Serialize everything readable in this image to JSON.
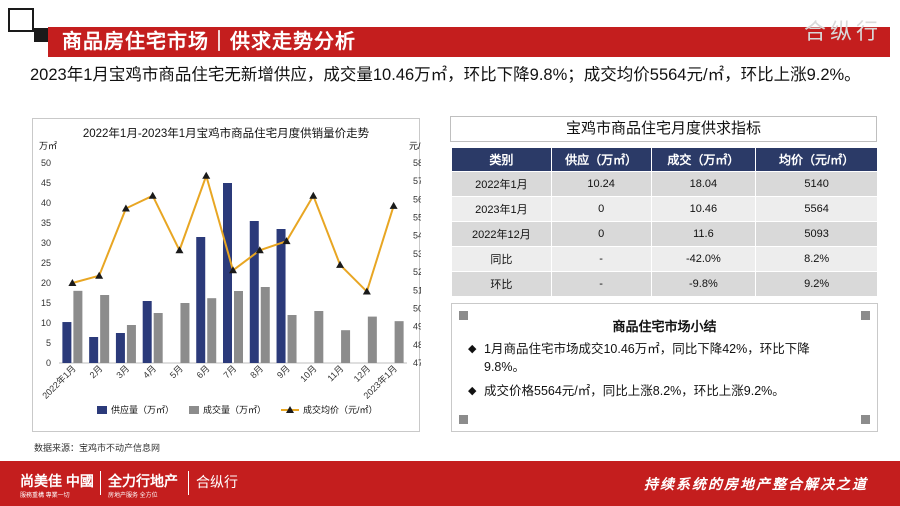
{
  "header": {
    "title": "商品房住宅市场｜供求走势分析",
    "watermark": "合纵行"
  },
  "intro": "2023年1月宝鸡市商品住宅无新增供应，成交量10.46万㎡，环比下降9.8%；成交均价5564元/㎡，环比上涨9.2%。",
  "chart_data": {
    "type": "bar+line",
    "title": "2022年1月-2023年1月宝鸡市商品住宅月度供销量价走势",
    "ylabel_left": "万㎡",
    "ylabel_right": "元/㎡",
    "ylim_left": [
      0,
      50
    ],
    "ylim_right": [
      4700,
      5800
    ],
    "yticks_left": [
      "0",
      "5",
      "10",
      "15",
      "20",
      "25",
      "30",
      "35",
      "40",
      "45",
      "50"
    ],
    "yticks_right": [
      "4700",
      "4800",
      "4900",
      "5000",
      "5100",
      "5200",
      "5300",
      "5400",
      "5500",
      "5600",
      "5700",
      "5800"
    ],
    "categories": [
      "2022年1月",
      "2月",
      "3月",
      "4月",
      "5月",
      "6月",
      "7月",
      "8月",
      "9月",
      "10月",
      "11月",
      "12月",
      "2023年1月"
    ],
    "series": [
      {
        "name": "供应量（万㎡）",
        "type": "bar",
        "color": "#2b3a7a",
        "values": [
          10.24,
          6.5,
          7.5,
          15.5,
          0,
          31.5,
          45,
          35.5,
          33.5,
          0,
          0,
          0,
          0
        ]
      },
      {
        "name": "成交量（万㎡）",
        "type": "bar",
        "color": "#8c8c8c",
        "values": [
          18.04,
          17,
          9.5,
          12.5,
          15,
          16.2,
          18,
          19,
          12,
          13,
          8.2,
          11.6,
          10.46
        ]
      },
      {
        "name": "成交均价（元/㎡）",
        "type": "line",
        "color": "#e8a623",
        "values": [
          5140,
          5180,
          5550,
          5620,
          5320,
          5730,
          5210,
          5320,
          5370,
          5620,
          5240,
          5093,
          5564
        ]
      }
    ],
    "legend": "bottom"
  },
  "source_note": "数据来源：宝鸡市不动产信息网",
  "table": {
    "title": "宝鸡市商品住宅月度供求指标",
    "headers": [
      "类别",
      "供应（万㎡）",
      "成交（万㎡）",
      "均价（元/㎡）"
    ],
    "rows": [
      [
        "2022年1月",
        "10.24",
        "18.04",
        "5140"
      ],
      [
        "2023年1月",
        "0",
        "10.46",
        "5564"
      ],
      [
        "2022年12月",
        "0",
        "11.6",
        "5093"
      ],
      [
        "同比",
        "-",
        "-42.0%",
        "8.2%"
      ],
      [
        "环比",
        "-",
        "-9.8%",
        "9.2%"
      ]
    ]
  },
  "summary": {
    "title": "商品住宅市场小结",
    "items": [
      "1月商品住宅市场成交10.46万㎡，同比下降42%，环比下降9.8%。",
      "成交价格5564元/㎡，同比上涨8.2%，环比上涨9.2%。"
    ]
  },
  "footer": {
    "logo1": "尚美佳 中國",
    "logo1_sub": "服務重構 專業一切",
    "logo2": "全力行地产",
    "logo2_sub": "房地产服务 全方位",
    "logo3": "合纵行",
    "slogan": "持续系统的房地产整合解决之道"
  }
}
